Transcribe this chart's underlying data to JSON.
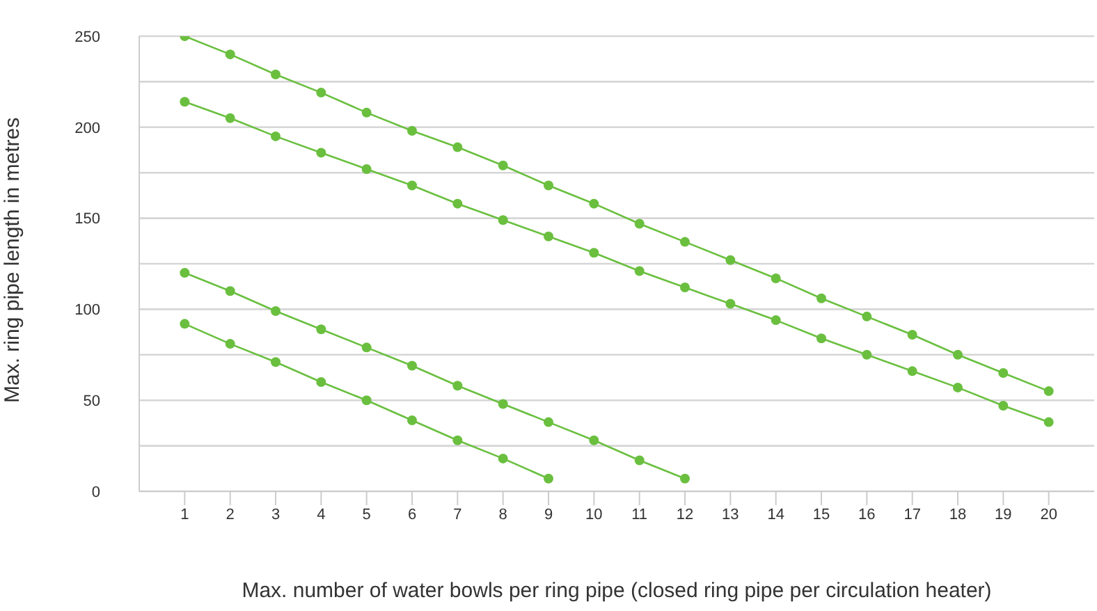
{
  "chart_data": {
    "type": "line",
    "xlabel": "Max. number of water bowls per ring pipe (closed ring pipe per circulation heater)",
    "ylabel": "Max. ring pipe length in metres",
    "xlim": [
      0,
      21
    ],
    "xticks": [
      1,
      2,
      3,
      4,
      5,
      6,
      7,
      8,
      9,
      10,
      11,
      12,
      13,
      14,
      15,
      16,
      17,
      18,
      19,
      20
    ],
    "ylim": [
      0,
      250
    ],
    "yticks": [
      0,
      {
        "value": 25,
        "label": null
      },
      50,
      {
        "value": 75,
        "label": null
      },
      100,
      {
        "value": 125,
        "label": null
      },
      150,
      {
        "value": 175,
        "label": null
      },
      200,
      {
        "value": 225,
        "label": null
      },
      250
    ],
    "grid": "y",
    "marker": "circle",
    "line_style": "solid",
    "series": [
      {
        "color": "#6abf3f",
        "x": [
          1,
          2,
          3,
          4,
          5,
          6,
          7,
          8,
          9,
          10,
          11,
          12,
          13,
          14,
          15,
          16,
          17,
          18,
          19,
          20
        ],
        "values": [
          250,
          240,
          229,
          219,
          208,
          198,
          189,
          179,
          168,
          158,
          147,
          137,
          127,
          117,
          106,
          96,
          86,
          75,
          65,
          55
        ]
      },
      {
        "color": "#6abf3f",
        "x": [
          1,
          2,
          3,
          4,
          5,
          6,
          7,
          8,
          9,
          10,
          11,
          12,
          13,
          14,
          15,
          16,
          17,
          18,
          19,
          20
        ],
        "values": [
          214,
          205,
          195,
          186,
          177,
          168,
          158,
          149,
          140,
          131,
          121,
          112,
          103,
          94,
          84,
          75,
          66,
          57,
          47,
          38
        ]
      },
      {
        "color": "#6abf3f",
        "x": [
          1,
          2,
          3,
          4,
          5,
          6,
          7,
          8,
          9,
          10,
          11,
          12
        ],
        "values": [
          120,
          110,
          99,
          89,
          79,
          69,
          58,
          48,
          38,
          28,
          17,
          7
        ]
      },
      {
        "color": "#6abf3f",
        "x": [
          1,
          2,
          3,
          4,
          5,
          6,
          7,
          8,
          9
        ],
        "values": [
          92,
          81,
          71,
          60,
          50,
          39,
          28,
          18,
          7
        ]
      }
    ]
  }
}
